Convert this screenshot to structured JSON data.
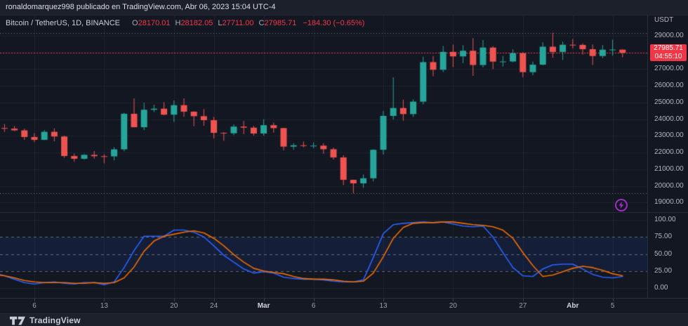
{
  "attribution": "ronaldomarquez998 publicado en TradingView.com, Abr 06, 2023 15:04 UTC-4",
  "legend": {
    "title": "Bitcoin / TetherUS, 1D, BINANCE",
    "items": [
      {
        "label": "O",
        "value": "28170.01"
      },
      {
        "label": "H",
        "value": "28182.05"
      },
      {
        "label": "L",
        "value": "27711.00"
      },
      {
        "label": "C",
        "value": "27985.71"
      }
    ],
    "change": "−184.30 (−0.65%)"
  },
  "price_axis": {
    "currency": "USDT",
    "labels": [
      {
        "price": 29000,
        "label": "29000.00"
      },
      {
        "price": 27000,
        "label": "27000.00"
      },
      {
        "price": 26000,
        "label": "26000.00"
      },
      {
        "price": 25000,
        "label": "25000.00"
      },
      {
        "price": 24000,
        "label": "24000.00"
      },
      {
        "price": 23000,
        "label": "23000.00"
      },
      {
        "price": 22000,
        "label": "22000.00"
      },
      {
        "price": 21000,
        "label": "21000.00"
      },
      {
        "price": 20000,
        "label": "20000.00"
      },
      {
        "price": 19000,
        "label": "19000.00"
      }
    ],
    "badge": {
      "price": "27985.71",
      "countdown": "04:55:10",
      "value": 27985.71
    }
  },
  "indicator_axis": {
    "labels": [
      {
        "value": 100,
        "label": "100.00"
      },
      {
        "value": 75,
        "label": "75.00"
      },
      {
        "value": 50,
        "label": "50.00"
      },
      {
        "value": 25,
        "label": "25.00"
      },
      {
        "value": 0,
        "label": "0.00"
      }
    ]
  },
  "time_axis": {
    "labels": [
      {
        "label": "6",
        "index": 4,
        "strong": false
      },
      {
        "label": "13",
        "index": 11,
        "strong": false
      },
      {
        "label": "20",
        "index": 18,
        "strong": false
      },
      {
        "label": "24",
        "index": 22,
        "strong": false
      },
      {
        "label": "Mar",
        "index": 27,
        "strong": true
      },
      {
        "label": "6",
        "index": 32,
        "strong": false
      },
      {
        "label": "13",
        "index": 39,
        "strong": false
      },
      {
        "label": "20",
        "index": 46,
        "strong": false
      },
      {
        "label": "27",
        "index": 53,
        "strong": false
      },
      {
        "label": "Abr",
        "index": 58,
        "strong": true
      },
      {
        "label": "5",
        "index": 62,
        "strong": false
      }
    ]
  },
  "footer": {
    "brand": "TradingView"
  },
  "colors": {
    "background": "#131722",
    "grid": "rgba(255,255,255,0.05)",
    "up": "#26a69a",
    "down": "#ef5350",
    "badge_bg": "#f23645",
    "current_price_line": "#f23645",
    "range_line": "#787b86",
    "k_line": "#2962ff",
    "d_line": "#ef6c00",
    "band_fill": "rgba(41,98,255,0.10)",
    "level_dash": "rgba(199,204,215,0.45)",
    "axis_text": "#b2b5be",
    "marker_purple": "#a02cc8"
  },
  "chart_data": {
    "type": "candlestick",
    "title": "Bitcoin / TetherUS, 1D, BINANCE",
    "ylim_visible": [
      18421,
      30223
    ],
    "x_dates": [
      "Feb 2",
      "Feb 3",
      "Feb 4",
      "Feb 5",
      "Feb 6",
      "Feb 7",
      "Feb 8",
      "Feb 9",
      "Feb 10",
      "Feb 11",
      "Feb 12",
      "Feb 13",
      "Feb 14",
      "Feb 15",
      "Feb 16",
      "Feb 17",
      "Feb 18",
      "Feb 19",
      "Feb 20",
      "Feb 21",
      "Feb 22",
      "Feb 23",
      "Feb 24",
      "Feb 25",
      "Feb 26",
      "Feb 27",
      "Feb 28",
      "Mar 1",
      "Mar 2",
      "Mar 3",
      "Mar 4",
      "Mar 5",
      "Mar 6",
      "Mar 7",
      "Mar 8",
      "Mar 9",
      "Mar 10",
      "Mar 11",
      "Mar 12",
      "Mar 13",
      "Mar 14",
      "Mar 15",
      "Mar 16",
      "Mar 17",
      "Mar 18",
      "Mar 19",
      "Mar 20",
      "Mar 21",
      "Mar 22",
      "Mar 23",
      "Mar 24",
      "Mar 25",
      "Mar 26",
      "Mar 27",
      "Mar 28",
      "Mar 29",
      "Mar 30",
      "Mar 31",
      "Abr 1",
      "Abr 2",
      "Abr 3",
      "Abr 4",
      "Abr 5",
      "Abr 6"
    ],
    "ohlc": [
      [
        23723,
        23786,
        23357,
        23471
      ],
      [
        23471,
        23715,
        23240,
        23432
      ],
      [
        23432,
        23580,
        23290,
        23330
      ],
      [
        23330,
        23430,
        22760,
        22930
      ],
      [
        22930,
        23159,
        22628,
        22760
      ],
      [
        22760,
        23350,
        22745,
        23243
      ],
      [
        23243,
        23452,
        22670,
        22960
      ],
      [
        22960,
        23011,
        21688,
        21790
      ],
      [
        21790,
        21938,
        21451,
        21625
      ],
      [
        21625,
        21906,
        21576,
        21860
      ],
      [
        21860,
        22090,
        21630,
        21780
      ],
      [
        21780,
        21894,
        21351,
        21770
      ],
      [
        21770,
        22319,
        21532,
        22190
      ],
      [
        22190,
        24380,
        22065,
        24324
      ],
      [
        24324,
        25250,
        23550,
        23517
      ],
      [
        23517,
        24987,
        23340,
        24565
      ],
      [
        24565,
        24868,
        24422,
        24630
      ],
      [
        24630,
        25021,
        24230,
        24270
      ],
      [
        24270,
        25120,
        23842,
        24840
      ],
      [
        24840,
        25250,
        24151,
        24450
      ],
      [
        24450,
        24475,
        23575,
        24180
      ],
      [
        24180,
        24600,
        23608,
        23940
      ],
      [
        23940,
        24134,
        22841,
        23180
      ],
      [
        23180,
        23219,
        22714,
        23157
      ],
      [
        23157,
        23689,
        23052,
        23554
      ],
      [
        23554,
        23897,
        23105,
        23490
      ],
      [
        23490,
        23600,
        23020,
        23141
      ],
      [
        23141,
        23990,
        23020,
        23640
      ],
      [
        23640,
        23795,
        23195,
        23465
      ],
      [
        23465,
        23476,
        22130,
        22354
      ],
      [
        22354,
        22565,
        22165,
        22435
      ],
      [
        22435,
        22660,
        22305,
        22410
      ],
      [
        22410,
        22602,
        22258,
        22412
      ],
      [
        22412,
        22557,
        21927,
        22197
      ],
      [
        22197,
        22290,
        21580,
        21705
      ],
      [
        21705,
        21834,
        20050,
        20362
      ],
      [
        20362,
        20370,
        19549,
        20150
      ],
      [
        20150,
        20686,
        19882,
        20455
      ],
      [
        20455,
        22185,
        20270,
        22163
      ],
      [
        22163,
        24500,
        21878,
        24197
      ],
      [
        24197,
        26514,
        23976,
        24670
      ],
      [
        24670,
        25167,
        23911,
        24307
      ],
      [
        24307,
        25190,
        24140,
        25052
      ],
      [
        25052,
        27756,
        24890,
        27423
      ],
      [
        27423,
        27787,
        26578,
        26965
      ],
      [
        26965,
        28390,
        26827,
        28038
      ],
      [
        28038,
        28472,
        27124,
        27767
      ],
      [
        27767,
        28438,
        27365,
        28105
      ],
      [
        28105,
        28868,
        26601,
        27250
      ],
      [
        27250,
        28750,
        27105,
        28295
      ],
      [
        28295,
        28374,
        27000,
        27454
      ],
      [
        27454,
        27787,
        27156,
        27462
      ],
      [
        27462,
        28194,
        27417,
        27960
      ],
      [
        27960,
        28023,
        26508,
        26822
      ],
      [
        26822,
        27448,
        26644,
        27268
      ],
      [
        27268,
        28613,
        27236,
        28348
      ],
      [
        28348,
        29184,
        27678,
        28033
      ],
      [
        28033,
        28650,
        27555,
        28465
      ],
      [
        28465,
        28810,
        28251,
        28455
      ],
      [
        28455,
        28540,
        27881,
        28199
      ],
      [
        28199,
        28480,
        27250,
        27790
      ],
      [
        27790,
        28444,
        27666,
        28169
      ],
      [
        28169,
        28769,
        27806,
        28177
      ],
      [
        28170.01,
        28182.05,
        27711,
        27985.71
      ]
    ],
    "price_lines": [
      {
        "price": 27985.71,
        "role": "last-price",
        "color": "#f23645",
        "dash": [
          2,
          2
        ]
      },
      {
        "price": 29184,
        "role": "visible-high",
        "color": "#787b86",
        "dash": [
          1,
          3
        ]
      },
      {
        "price": 19549,
        "role": "visible-low",
        "color": "#787b86",
        "dash": [
          1,
          3
        ]
      }
    ],
    "oscillator": {
      "type": "stochastic",
      "ylim": [
        0,
        100
      ],
      "levels": [
        25,
        50,
        75
      ],
      "band": [
        25,
        75
      ],
      "k": [
        22,
        18,
        13,
        8,
        6,
        8,
        9,
        7,
        6,
        8,
        8,
        5,
        9,
        30,
        55,
        76,
        76,
        76,
        85,
        85,
        82,
        75,
        62,
        48,
        38,
        28,
        22,
        24,
        22,
        16,
        14,
        13,
        13,
        12,
        10,
        9,
        9,
        12,
        45,
        80,
        93,
        95,
        96,
        97,
        96,
        97,
        94,
        91,
        90,
        91,
        75,
        52,
        30,
        18,
        17,
        28,
        34,
        35,
        35,
        28,
        20,
        16,
        15,
        17
      ],
      "d": [
        20,
        18,
        15,
        11,
        9,
        8,
        8,
        8,
        7,
        7,
        8,
        7,
        8,
        15,
        31,
        54,
        69,
        76,
        79,
        82,
        84,
        81,
        73,
        62,
        49,
        38,
        29,
        25,
        23,
        21,
        17,
        14,
        13,
        13,
        12,
        10,
        9,
        10,
        22,
        46,
        73,
        89,
        95,
        96,
        96,
        97,
        97,
        95,
        93,
        92,
        90,
        85,
        73,
        52,
        33,
        17,
        19,
        24,
        29,
        32,
        30,
        26,
        21,
        18
      ]
    }
  }
}
